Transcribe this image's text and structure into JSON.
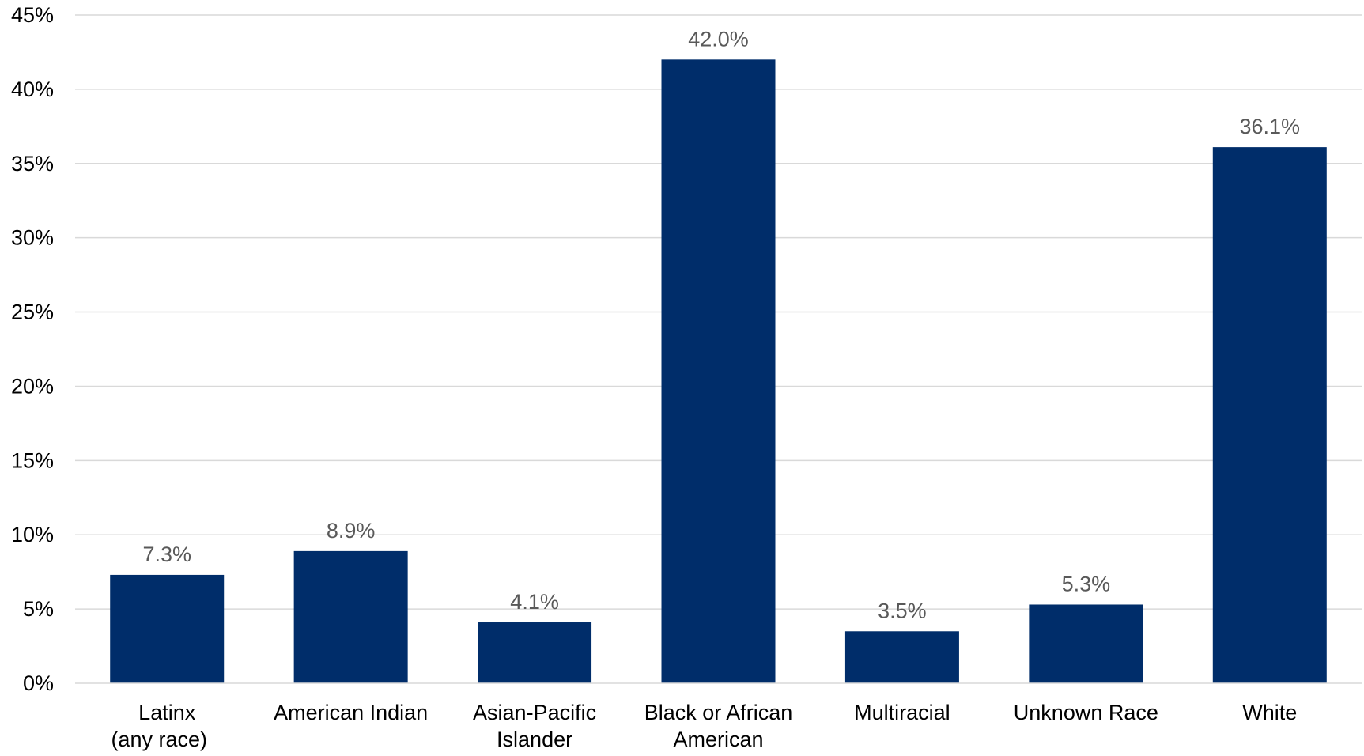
{
  "chart_data": {
    "type": "bar",
    "title": "",
    "xlabel": "",
    "ylabel": "",
    "categories": [
      [
        "Latinx",
        "(any race)"
      ],
      [
        "American Indian"
      ],
      [
        "Asian-Pacific",
        "Islander"
      ],
      [
        "Black or African",
        "American"
      ],
      [
        "Multiracial"
      ],
      [
        "Unknown Race"
      ],
      [
        "White"
      ]
    ],
    "values": [
      7.3,
      8.9,
      4.1,
      42.0,
      3.5,
      5.3,
      36.1
    ],
    "data_labels": [
      "7.3%",
      "8.9%",
      "4.1%",
      "42.0%",
      "3.5%",
      "5.3%",
      "36.1%"
    ],
    "ylim": [
      0,
      45
    ],
    "yticks": [
      0,
      5,
      10,
      15,
      20,
      25,
      30,
      35,
      40,
      45
    ],
    "ytick_labels": [
      "0%",
      "5%",
      "10%",
      "15%",
      "20%",
      "25%",
      "30%",
      "35%",
      "40%",
      "45%"
    ],
    "grid": true,
    "legend": "none",
    "bar_color": "#002d6a",
    "grid_color": "#d9d9d9",
    "label_color": "#595959"
  }
}
